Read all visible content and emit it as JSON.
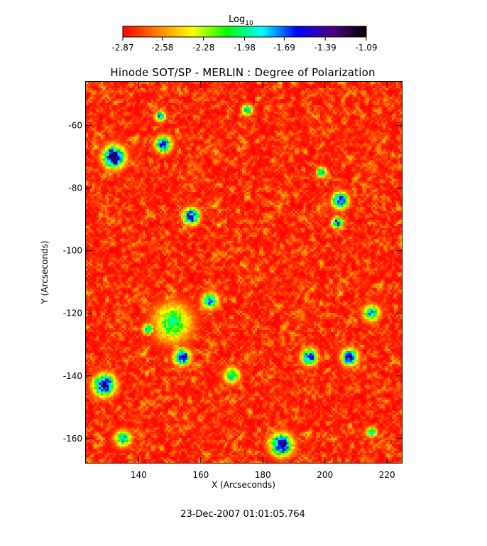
{
  "chart_data": {
    "type": "heatmap",
    "title": "Hinode SOT/SP - MERLIN : Degree of Polarization",
    "xlabel": "X (Arcseconds)",
    "ylabel": "Y (Arcseconds)",
    "xlim": [
      123,
      225
    ],
    "ylim": [
      -168,
      -46
    ],
    "x_ticks": [
      140,
      160,
      180,
      200,
      220
    ],
    "x_tick_labels": [
      "140",
      "160",
      "180",
      "200",
      "220"
    ],
    "y_ticks": [
      -60,
      -80,
      -100,
      -120,
      -140,
      -160
    ],
    "y_tick_labels": [
      "-60",
      "-80",
      "-100",
      "-120",
      "-140",
      "-160"
    ],
    "colorbar": {
      "title_base": "Log",
      "title_sub": "10",
      "range": [
        -2.87,
        -1.09
      ],
      "ticks": [
        -2.87,
        -2.58,
        -2.28,
        -1.98,
        -1.69,
        -1.39,
        -1.09
      ],
      "tick_labels": [
        "-2.87",
        "-2.58",
        "-2.28",
        "-1.98",
        "-1.69",
        "-1.39",
        "-1.09"
      ],
      "colormap": [
        "#ff0000",
        "#ff8000",
        "#ffff00",
        "#00ff00",
        "#00ffff",
        "#0000ff",
        "#4b0082",
        "#000000"
      ]
    },
    "timestamp": "23-Dec-2007 01:01:05.764",
    "hotspots": [
      {
        "x": 132,
        "y": -70,
        "level": -1.2,
        "radius": 4
      },
      {
        "x": 151,
        "y": -123,
        "level": -2.0,
        "radius": 7
      },
      {
        "x": 154,
        "y": -134,
        "level": -1.35,
        "radius": 3
      },
      {
        "x": 157,
        "y": -89,
        "level": -1.4,
        "radius": 3
      },
      {
        "x": 129,
        "y": -143,
        "level": -1.3,
        "radius": 4
      },
      {
        "x": 186,
        "y": -162,
        "level": -1.3,
        "radius": 4
      },
      {
        "x": 205,
        "y": -84,
        "level": -1.45,
        "radius": 3
      },
      {
        "x": 204,
        "y": -91,
        "level": -1.5,
        "radius": 2
      },
      {
        "x": 148,
        "y": -66,
        "level": -1.55,
        "radius": 3
      },
      {
        "x": 208,
        "y": -134,
        "level": -1.45,
        "radius": 3
      },
      {
        "x": 195,
        "y": -134,
        "level": -1.55,
        "radius": 3
      },
      {
        "x": 163,
        "y": -116,
        "level": -1.7,
        "radius": 3
      },
      {
        "x": 143,
        "y": -125,
        "level": -1.75,
        "radius": 2
      },
      {
        "x": 175,
        "y": -55,
        "level": -1.8,
        "radius": 2
      },
      {
        "x": 147,
        "y": -57,
        "level": -1.75,
        "radius": 2
      },
      {
        "x": 215,
        "y": -120,
        "level": -1.8,
        "radius": 3
      },
      {
        "x": 135,
        "y": -160,
        "level": -1.8,
        "radius": 3
      },
      {
        "x": 199,
        "y": -75,
        "level": -1.85,
        "radius": 2
      },
      {
        "x": 170,
        "y": -140,
        "level": -1.9,
        "radius": 3
      },
      {
        "x": 215,
        "y": -158,
        "level": -1.9,
        "radius": 2
      }
    ]
  }
}
